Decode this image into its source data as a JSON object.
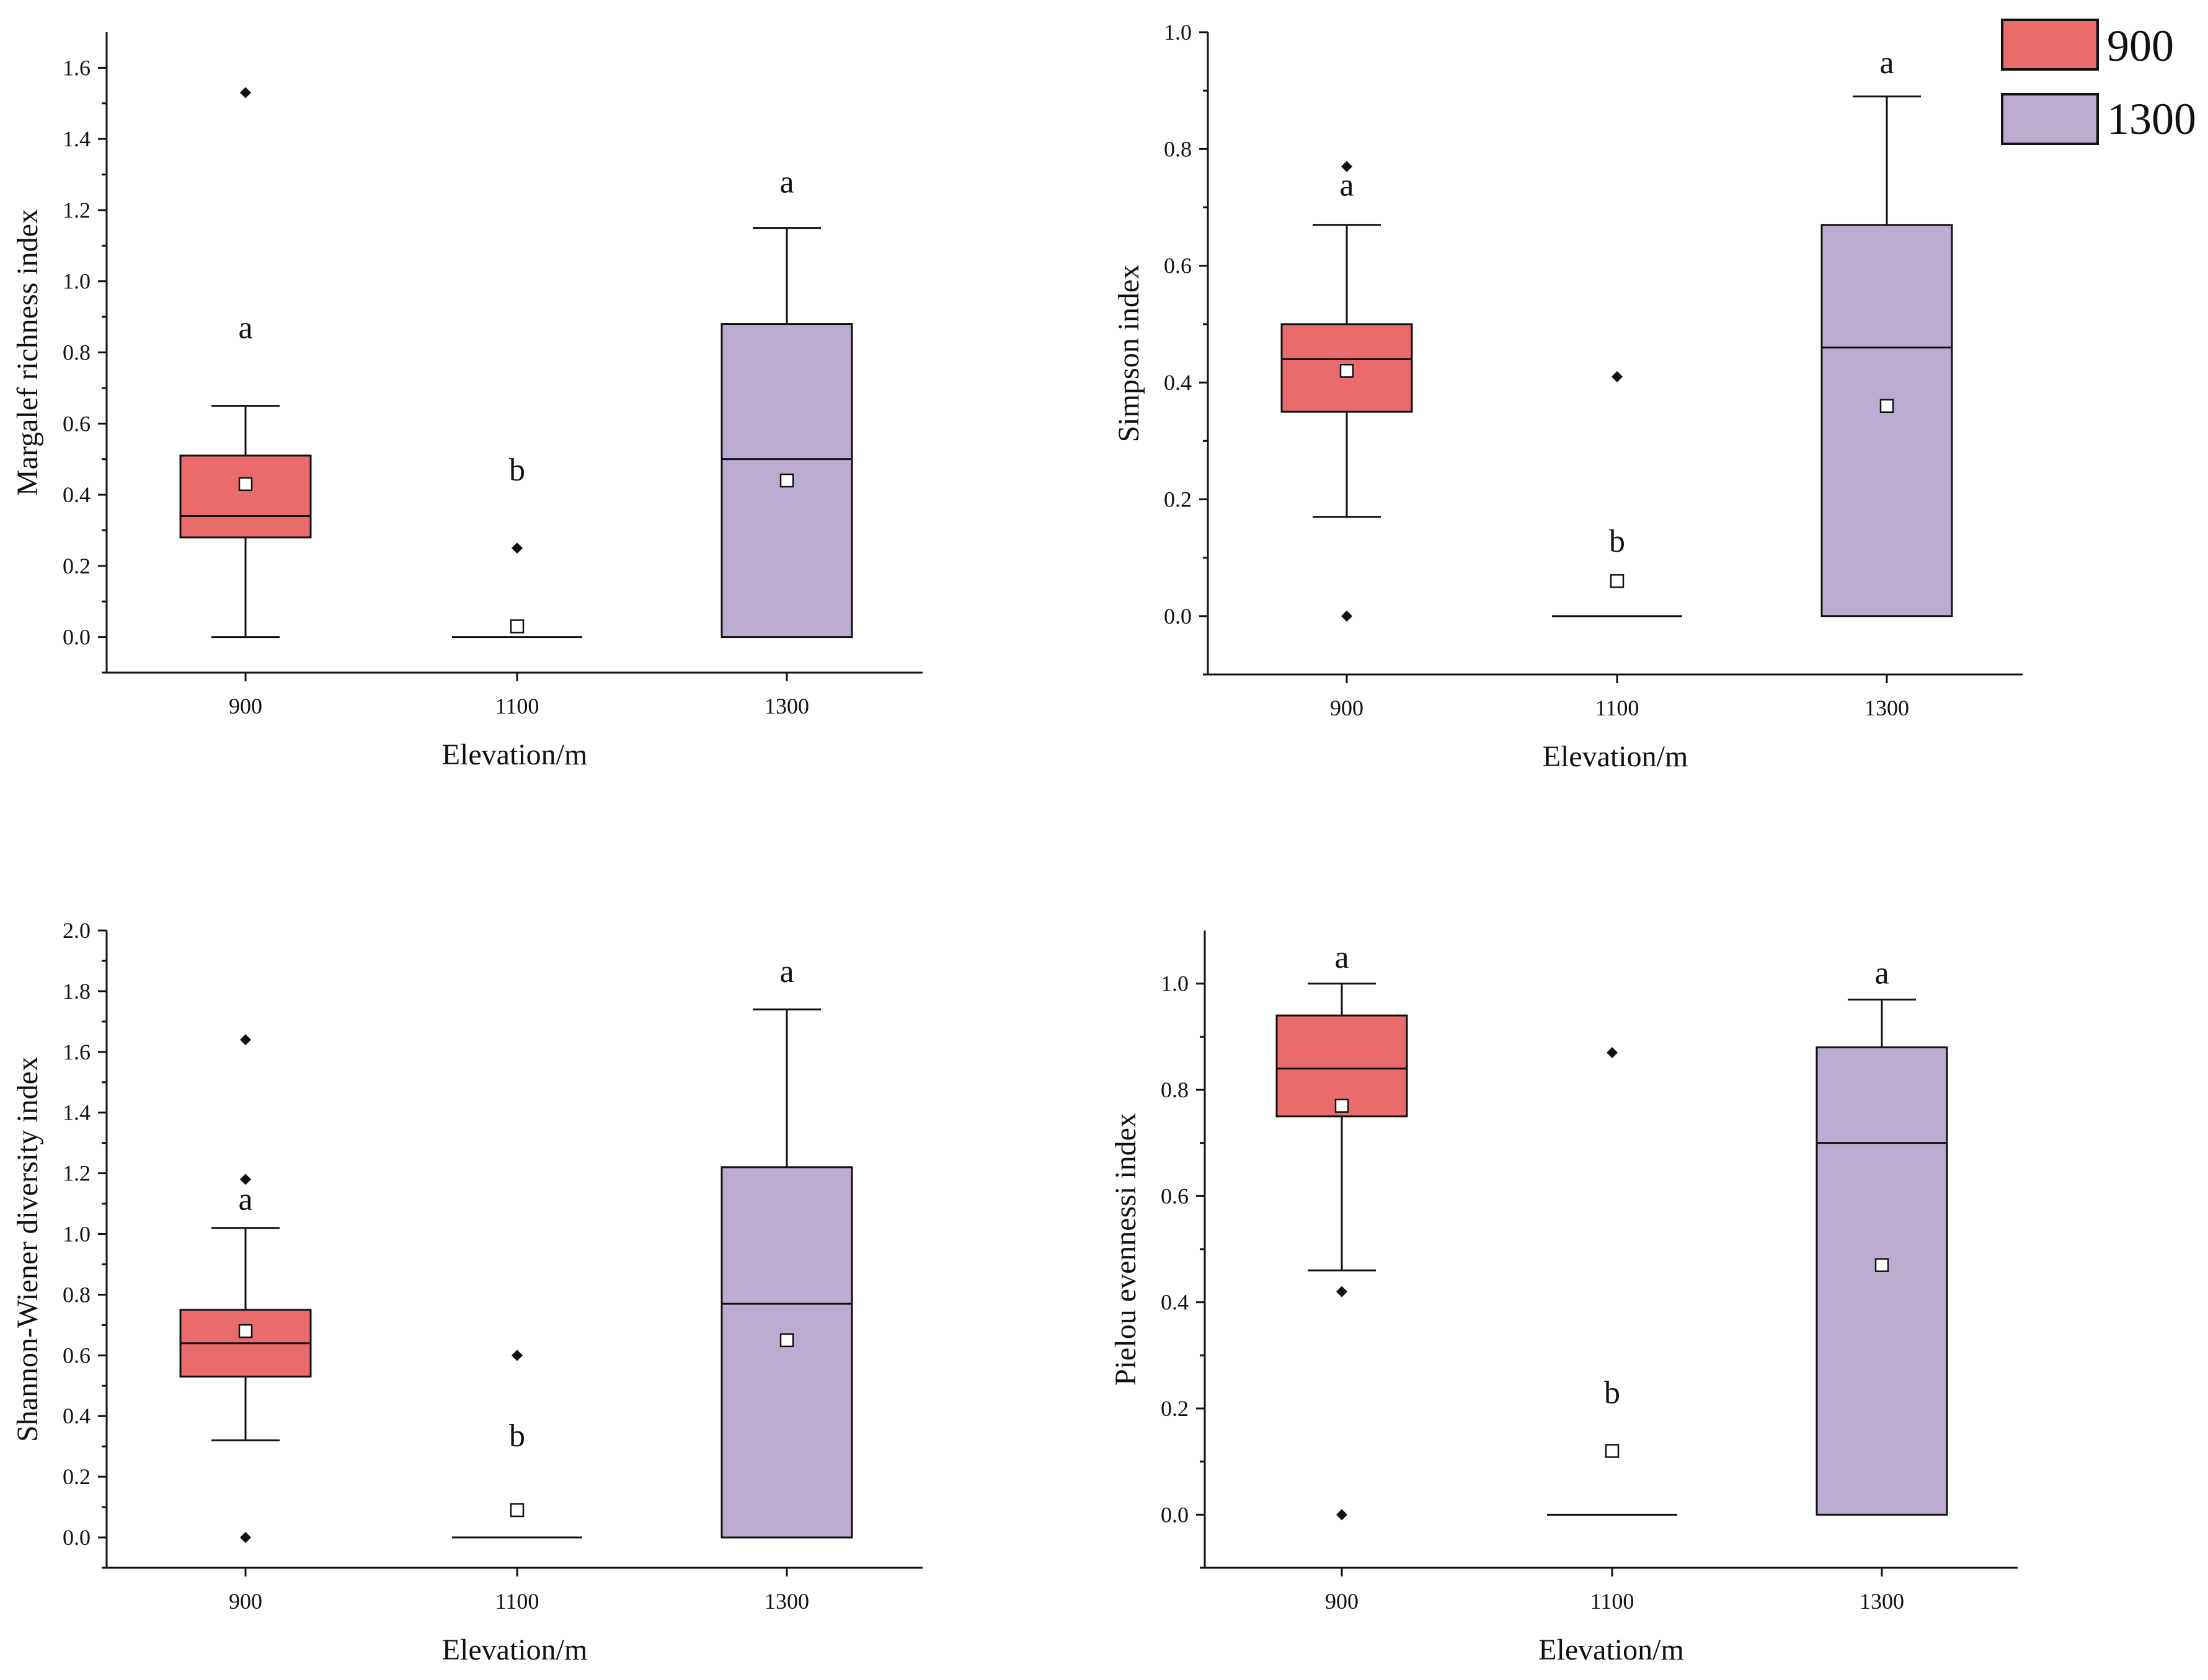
{
  "colors": {
    "low": "#ea6b6b",
    "high": "#bcacd2",
    "line": "#111111",
    "mean_fill": "#ffffff"
  },
  "legend": {
    "items": [
      {
        "label": "900",
        "color": "#ea6b6b"
      },
      {
        "label": "1300",
        "color": "#bcacd2"
      }
    ]
  },
  "chart_data": [
    {
      "type": "box",
      "xlabel": "Elevation/m",
      "ylabel": "Margalef richness index",
      "ylim": [
        -0.1,
        1.7
      ],
      "yticks": [
        0.0,
        0.2,
        0.4,
        0.6,
        0.8,
        1.0,
        1.2,
        1.4,
        1.6
      ],
      "categories": [
        "900",
        "1100",
        "1300"
      ],
      "boxes": [
        {
          "category": "900",
          "color": "#ea6b6b",
          "whisker_low": 0.0,
          "q1": 0.28,
          "median": 0.34,
          "q3": 0.51,
          "whisker_high": 0.65,
          "mean": 0.43,
          "outliers": [
            1.53
          ],
          "letter": "a",
          "letter_y": 0.84
        },
        {
          "category": "1100",
          "color": "none",
          "whisker_low": 0.0,
          "q1": 0.0,
          "median": 0.0,
          "q3": 0.0,
          "whisker_high": 0.0,
          "mean": 0.03,
          "outliers": [
            0.25
          ],
          "letter": "b",
          "letter_y": 0.44
        },
        {
          "category": "1300",
          "color": "#bcacd2",
          "whisker_low": 0.0,
          "q1": 0.0,
          "median": 0.5,
          "q3": 0.88,
          "whisker_high": 1.15,
          "mean": 0.44,
          "outliers": [],
          "letter": "a",
          "letter_y": 1.25
        }
      ]
    },
    {
      "type": "box",
      "xlabel": "Elevation/m",
      "ylabel": "Simpson index",
      "ylim": [
        -0.1,
        1.0
      ],
      "yticks": [
        0.0,
        0.2,
        0.4,
        0.6,
        0.8,
        1.0
      ],
      "categories": [
        "900",
        "1100",
        "1300"
      ],
      "boxes": [
        {
          "category": "900",
          "color": "#ea6b6b",
          "whisker_low": 0.17,
          "q1": 0.35,
          "median": 0.44,
          "q3": 0.5,
          "whisker_high": 0.67,
          "mean": 0.42,
          "outliers": [
            0.0,
            0.77
          ],
          "letter": "a",
          "letter_y": 0.72
        },
        {
          "category": "1100",
          "color": "none",
          "whisker_low": 0.0,
          "q1": 0.0,
          "median": 0.0,
          "q3": 0.0,
          "whisker_high": 0.0,
          "mean": 0.06,
          "outliers": [
            0.41
          ],
          "letter": "b",
          "letter_y": 0.11
        },
        {
          "category": "1300",
          "color": "#bcacd2",
          "whisker_low": 0.0,
          "q1": 0.0,
          "median": 0.46,
          "q3": 0.67,
          "whisker_high": 0.89,
          "mean": 0.36,
          "outliers": [],
          "letter": "a",
          "letter_y": 0.93
        }
      ]
    },
    {
      "type": "box",
      "xlabel": "Elevation/m",
      "ylabel": "Shannon-Wiener diversity index",
      "ylim": [
        -0.1,
        2.0
      ],
      "yticks": [
        0.0,
        0.2,
        0.4,
        0.6,
        0.8,
        1.0,
        1.2,
        1.4,
        1.6,
        1.8,
        2.0
      ],
      "categories": [
        "900",
        "1100",
        "1300"
      ],
      "boxes": [
        {
          "category": "900",
          "color": "#ea6b6b",
          "whisker_low": 0.32,
          "q1": 0.53,
          "median": 0.64,
          "q3": 0.75,
          "whisker_high": 1.02,
          "mean": 0.68,
          "outliers": [
            0.0,
            1.18,
            1.64
          ],
          "letter": "a",
          "letter_y": 1.08
        },
        {
          "category": "1100",
          "color": "none",
          "whisker_low": 0.0,
          "q1": 0.0,
          "median": 0.0,
          "q3": 0.0,
          "whisker_high": 0.0,
          "mean": 0.09,
          "outliers": [
            0.6
          ],
          "letter": "b",
          "letter_y": 0.3
        },
        {
          "category": "1300",
          "color": "#bcacd2",
          "whisker_low": 0.0,
          "q1": 0.0,
          "median": 0.77,
          "q3": 1.22,
          "whisker_high": 1.74,
          "mean": 0.65,
          "outliers": [],
          "letter": "a",
          "letter_y": 1.83
        }
      ]
    },
    {
      "type": "box",
      "xlabel": "Elevation/m",
      "ylabel": "Pielou evennessi index",
      "ylim": [
        -0.1,
        1.1
      ],
      "yticks": [
        0.0,
        0.2,
        0.4,
        0.6,
        0.8,
        1.0
      ],
      "categories": [
        "900",
        "1100",
        "1300"
      ],
      "boxes": [
        {
          "category": "900",
          "color": "#ea6b6b",
          "whisker_low": 0.46,
          "q1": 0.75,
          "median": 0.84,
          "q3": 0.94,
          "whisker_high": 1.0,
          "mean": 0.77,
          "outliers": [
            0.0,
            0.42
          ],
          "letter": "a",
          "letter_y": 1.03
        },
        {
          "category": "1100",
          "color": "none",
          "whisker_low": 0.0,
          "q1": 0.0,
          "median": 0.0,
          "q3": 0.0,
          "whisker_high": 0.0,
          "mean": 0.12,
          "outliers": [
            0.87
          ],
          "letter": "b",
          "letter_y": 0.21
        },
        {
          "category": "1300",
          "color": "#bcacd2",
          "whisker_low": 0.0,
          "q1": 0.0,
          "median": 0.7,
          "q3": 0.88,
          "whisker_high": 0.97,
          "mean": 0.47,
          "outliers": [],
          "letter": "a",
          "letter_y": 1.0
        }
      ]
    }
  ]
}
